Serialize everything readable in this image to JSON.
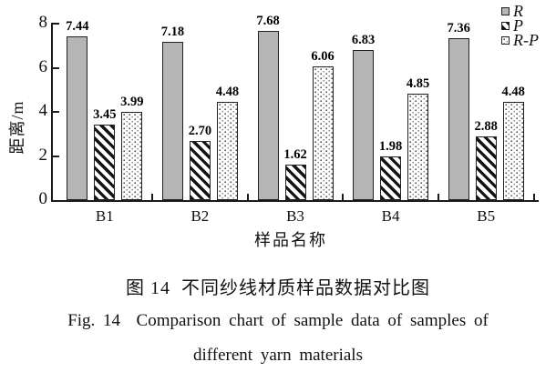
{
  "chart_data": {
    "type": "bar",
    "categories": [
      "B1",
      "B2",
      "B3",
      "B4",
      "B5"
    ],
    "series": [
      {
        "name": "R",
        "style": "solid-gray",
        "values": [
          7.44,
          7.18,
          7.68,
          6.83,
          7.36
        ]
      },
      {
        "name": "P",
        "style": "diagonal-hatch",
        "values": [
          3.45,
          2.7,
          1.62,
          1.98,
          2.88
        ]
      },
      {
        "name": "R-P",
        "style": "dotted",
        "values": [
          3.99,
          4.48,
          6.06,
          4.85,
          4.48
        ]
      }
    ],
    "ylabel": "距离/m",
    "xlabel": "样品名称",
    "ylim": [
      0,
      8
    ],
    "yticks": [
      0,
      2,
      4,
      6,
      8
    ],
    "legend_position": "top-right",
    "grid": false,
    "value_labels_decimals": 2
  },
  "captions": {
    "zh": "图 14  不同纱线材质样品数据对比图",
    "en_line1": "Fig. 14  Comparison chart of sample data of samples of",
    "en_line2": "different yarn materials"
  },
  "colors": {
    "bar_gray": "#b5b5b5",
    "bar_border": "#222222",
    "axis": "#1a1a1a",
    "background": "#ffffff",
    "text": "#111111"
  }
}
